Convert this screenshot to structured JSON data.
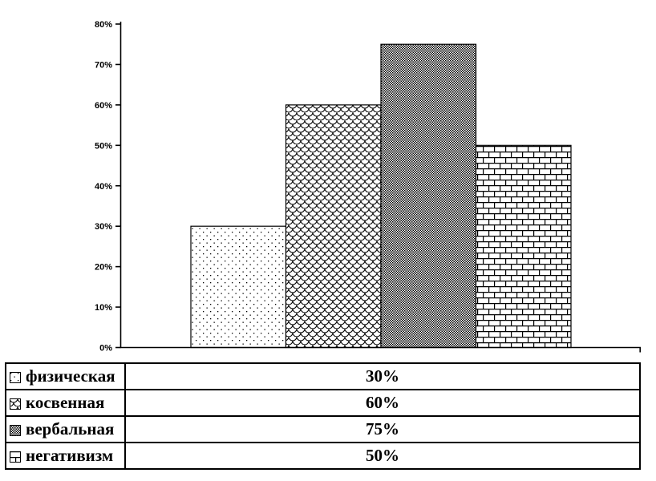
{
  "colors": {
    "foreground": "#000000",
    "background": "#ffffff"
  },
  "chart_data": {
    "type": "bar",
    "title": "",
    "xlabel": "",
    "ylabel": "",
    "categories": [
      "физическая",
      "косвенная",
      "вербальная",
      "негативизм"
    ],
    "values": [
      30,
      60,
      75,
      50
    ],
    "unit": "%",
    "ylim": [
      0,
      80
    ],
    "yticks": [
      0,
      10,
      20,
      30,
      40,
      50,
      60,
      70,
      80
    ],
    "ytick_labels": [
      "0%",
      "10%",
      "20%",
      "30%",
      "40%",
      "50%",
      "60%",
      "70%",
      "80%"
    ],
    "grid": false,
    "bar_fill_patterns": [
      "dots",
      "fish-scale",
      "dense-checker",
      "brick"
    ],
    "bar_outline_color": "#000000",
    "legend_position": "bottom-table"
  },
  "legend_table": {
    "rows": [
      {
        "label": "физическая",
        "value": "30%",
        "pattern": "dots"
      },
      {
        "label": "косвенная",
        "value": "60%",
        "pattern": "fish-scale"
      },
      {
        "label": "вербальная",
        "value": "75%",
        "pattern": "dense-checker"
      },
      {
        "label": "негативизм",
        "value": "50%",
        "pattern": "brick"
      }
    ]
  }
}
